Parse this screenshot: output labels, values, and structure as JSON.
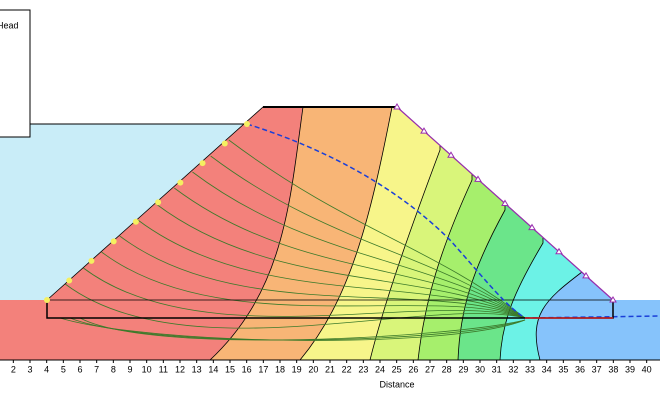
{
  "chart_data": {
    "type": "contour",
    "legend_title": "Head",
    "x_label": "Distance",
    "xlim": [
      1.2,
      40.8
    ],
    "xticks": [
      2,
      3,
      4,
      5,
      6,
      7,
      8,
      9,
      10,
      11,
      12,
      13,
      14,
      15,
      16,
      17,
      18,
      19,
      20,
      21,
      22,
      23,
      24,
      25,
      26,
      27,
      28,
      29,
      30,
      31,
      32,
      33,
      34,
      35,
      36,
      37,
      38,
      39,
      40
    ]
  }
}
